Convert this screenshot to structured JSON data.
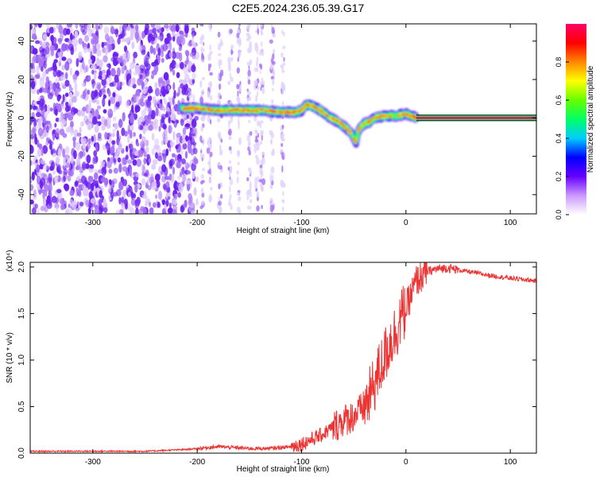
{
  "title": "C2E5.2024.236.05.39.G17",
  "chart_data": [
    {
      "type": "heatmap",
      "title": "C2E5.2024.236.05.39.G17",
      "xlabel": "Height of straight line (km)",
      "ylabel": "Frequency (Hz)",
      "xlim": [
        -360,
        125
      ],
      "ylim": [
        -50,
        49
      ],
      "xticks": [
        -300,
        -200,
        -100,
        0,
        100
      ],
      "yticks": [
        -40,
        -20,
        0,
        20,
        40
      ],
      "colorbar": {
        "label": "Normalized spectral amplitude",
        "range": [
          0,
          1
        ],
        "ticks": [
          0.0,
          0.2,
          0.4,
          0.6,
          0.8
        ],
        "colors": [
          "#ffffff",
          "#cc99ff",
          "#6600ff",
          "#0000ff",
          "#00ccff",
          "#00ff66",
          "#66ff00",
          "#ffff00",
          "#ff8800",
          "#ff0000",
          "#ff0066"
        ]
      },
      "noise_region_x": [
        -360,
        -200
      ],
      "signal_trace": {
        "x": [
          -215,
          -200,
          -180,
          -160,
          -140,
          -120,
          -105,
          -100,
          -95,
          -85,
          -75,
          -65,
          -58,
          -52,
          -48,
          -45,
          -40,
          -35,
          -30,
          -20,
          -10,
          0,
          5,
          10
        ],
        "y": [
          5,
          5,
          4,
          4,
          4,
          3,
          3,
          4,
          7,
          5,
          1,
          -2,
          -5,
          -8,
          -13,
          -6,
          -3,
          -2,
          0,
          1,
          1,
          2,
          1,
          0
        ]
      },
      "tone_line": {
        "x_start": 10,
        "x_end": 125,
        "y": 0,
        "amplitude": 1.0
      }
    },
    {
      "type": "line",
      "xlabel": "Height of straight line (km)",
      "ylabel": "SNR (10 * v/v)",
      "multiplier": "(x10⁴)",
      "xlim": [
        -360,
        125
      ],
      "ylim": [
        0,
        2.05
      ],
      "xticks": [
        -300,
        -200,
        -100,
        0,
        100
      ],
      "yticks": [
        0.0,
        0.5,
        1.0,
        1.5,
        2.0
      ],
      "color": "#ee3333",
      "series": [
        {
          "name": "SNR",
          "x": [
            -360,
            -250,
            -210,
            -190,
            -180,
            -150,
            -130,
            -110,
            -100,
            -90,
            -80,
            -70,
            -60,
            -50,
            -40,
            -35,
            -30,
            -25,
            -20,
            -15,
            -10,
            -5,
            0,
            5,
            10,
            20,
            30,
            40,
            50,
            60,
            80,
            100,
            125
          ],
          "y": [
            0.02,
            0.02,
            0.04,
            0.06,
            0.07,
            0.05,
            0.05,
            0.07,
            0.1,
            0.15,
            0.2,
            0.28,
            0.35,
            0.4,
            0.5,
            0.6,
            0.75,
            0.9,
            1.05,
            1.2,
            1.3,
            1.45,
            1.55,
            1.7,
            1.85,
            1.95,
            1.98,
            1.99,
            1.97,
            1.95,
            1.91,
            1.88,
            1.85
          ]
        }
      ]
    }
  ]
}
